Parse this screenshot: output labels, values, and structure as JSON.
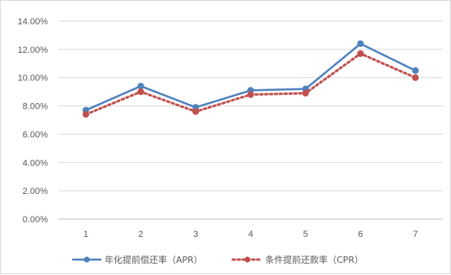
{
  "chart_data": {
    "type": "line",
    "title": "",
    "xlabel": "",
    "ylabel": "",
    "categories": [
      "1",
      "2",
      "3",
      "4",
      "5",
      "6",
      "7"
    ],
    "ylim": [
      0,
      0.14
    ],
    "ytick_values": [
      0,
      0.02,
      0.04,
      0.06,
      0.08,
      0.1,
      0.12,
      0.14
    ],
    "ytick_labels": [
      "0.00%",
      "2.00%",
      "4.00%",
      "6.00%",
      "8.00%",
      "10.00%",
      "12.00%",
      "14.00%"
    ],
    "grid": true,
    "legend_position": "bottom",
    "series": [
      {
        "name": "年化提前偿还率（APR）",
        "values": [
          0.077,
          0.094,
          0.079,
          0.091,
          0.092,
          0.124,
          0.105
        ],
        "color": "#4f81bd",
        "line_style": "solid"
      },
      {
        "name": "条件提前还款率（CPR）",
        "values": [
          0.074,
          0.09,
          0.076,
          0.088,
          0.089,
          0.117,
          0.1
        ],
        "color": "#c0504d",
        "line_style": "dotted"
      }
    ]
  }
}
